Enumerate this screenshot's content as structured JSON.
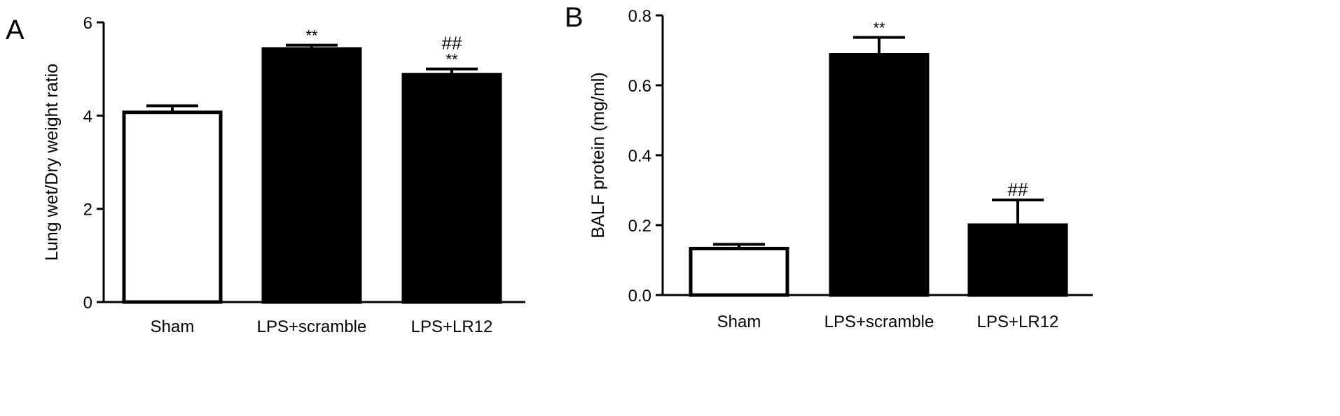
{
  "chart_data": [
    {
      "panel": "A",
      "type": "bar",
      "title": "",
      "xlabel": "",
      "ylabel": "Lung wet/Dry weight ratio",
      "ylim": [
        0,
        6
      ],
      "yticks": [
        "0",
        "2",
        "4",
        "6"
      ],
      "categories": [
        "Sham",
        "LPS+scramble",
        "LPS+LR12"
      ],
      "values": [
        4.07,
        5.43,
        4.88
      ],
      "errors": [
        0.14,
        0.08,
        0.12
      ],
      "fills": [
        "#ffffff",
        "#000000",
        "#000000"
      ],
      "annotations": [
        [],
        [
          "**"
        ],
        [
          "##",
          "**"
        ]
      ],
      "grid": false,
      "legend": "none"
    },
    {
      "panel": "B",
      "type": "bar",
      "title": "",
      "xlabel": "",
      "ylabel": "BALF protein (mg/ml)",
      "ylim": [
        0,
        0.8
      ],
      "yticks": [
        "0.0",
        "0.2",
        "0.4",
        "0.6",
        "0.8"
      ],
      "categories": [
        "Sham",
        "LPS+scramble",
        "LPS+LR12"
      ],
      "values": [
        0.133,
        0.687,
        0.2
      ],
      "errors": [
        0.012,
        0.05,
        0.072
      ],
      "fills": [
        "#ffffff",
        "#000000",
        "#000000"
      ],
      "annotations": [
        [],
        [
          "**"
        ],
        [
          "##"
        ]
      ],
      "grid": false,
      "legend": "none"
    }
  ]
}
